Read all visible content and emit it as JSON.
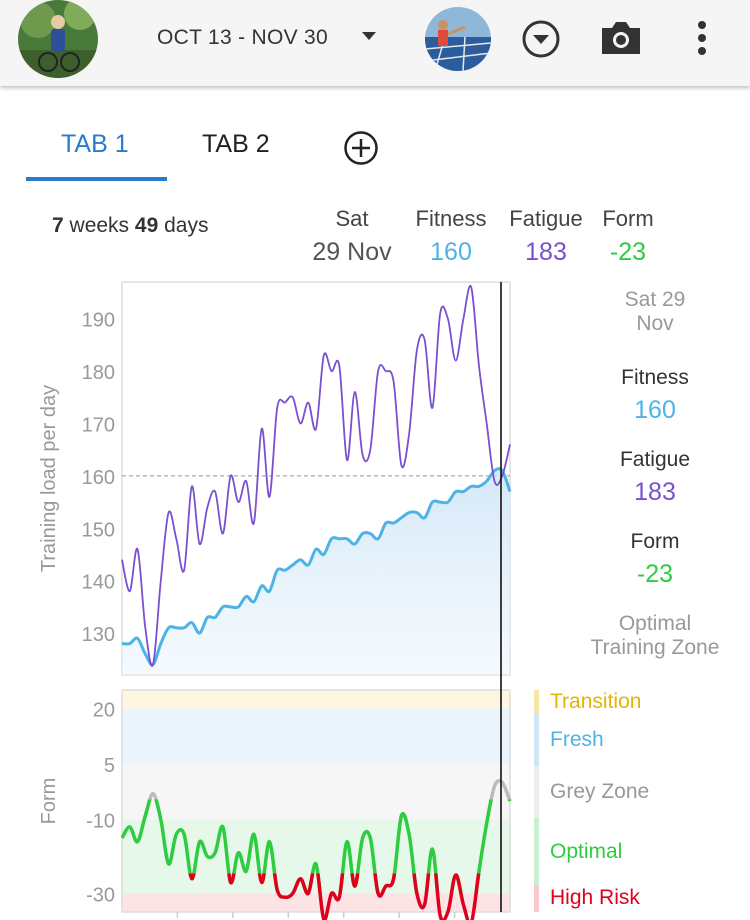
{
  "header": {
    "date_range": "OCT 13 - NOV 30",
    "icons": [
      "profile-avatar",
      "chevron-down-icon",
      "profile-photo",
      "circle-dropdown-icon",
      "camera-icon",
      "more-vert-icon"
    ]
  },
  "tabs": [
    {
      "label": "TAB 1",
      "active": true
    },
    {
      "label": "TAB 2",
      "active": false
    }
  ],
  "summary": {
    "weeks_num": "7",
    "weeks_label": "weeks",
    "days_num": "49",
    "days_label": "days",
    "day_name": "Sat",
    "day_date": "29 Nov",
    "fitness_label": "Fitness",
    "fitness_value": "160",
    "fatigue_label": "Fatigue",
    "fatigue_value": "183",
    "form_label": "Form",
    "form_value": "-23"
  },
  "side_panel": {
    "date_line1": "Sat 29",
    "date_line2": "Nov",
    "fitness_label": "Fitness",
    "fitness_value": "160",
    "fatigue_label": "Fatigue",
    "fatigue_value": "183",
    "form_label": "Form",
    "form_value": "-23",
    "zone_line1": "Optimal",
    "zone_line2": "Training Zone"
  },
  "colors": {
    "fitness": "#4db3e6",
    "fatigue": "#7a4fd0",
    "form_green": "#2ecc40",
    "form_red": "#e0001b",
    "tab_active": "#2a7ccb",
    "transition": "#e6b400",
    "fresh": "#4db3e6",
    "grey": "#999999",
    "high_risk": "#e0001b"
  },
  "form_zones": [
    {
      "name": "Transition",
      "color": "#e6b400"
    },
    {
      "name": "Fresh",
      "color": "#4db3e6"
    },
    {
      "name": "Grey Zone",
      "color": "#999999"
    },
    {
      "name": "Optimal",
      "color": "#2ecc40"
    },
    {
      "name": "High Risk",
      "color": "#e0001b"
    }
  ],
  "chart_data": [
    {
      "type": "line",
      "ylabel": "Training load per day",
      "ylim": [
        122,
        197
      ],
      "yticks": [
        "130",
        "140",
        "150",
        "160",
        "170",
        "180",
        "190"
      ],
      "reference_line": 160,
      "series": [
        {
          "name": "Fitness",
          "values": [
            128,
            128,
            129,
            126,
            124,
            128,
            131,
            131,
            131,
            132,
            130,
            133,
            133,
            135,
            135,
            135,
            137,
            136,
            139,
            138,
            142,
            142,
            143,
            144,
            143,
            146,
            145,
            148,
            148,
            148,
            147,
            149,
            149,
            148,
            151,
            151,
            152,
            153,
            153,
            152,
            155,
            155,
            155,
            157,
            157,
            158,
            158,
            159,
            161,
            161,
            157
          ]
        },
        {
          "name": "Fatigue",
          "values": [
            144,
            138,
            146,
            131,
            124,
            140,
            153,
            148,
            142,
            158,
            147,
            154,
            157,
            149,
            160,
            155,
            159,
            151,
            169,
            156,
            173,
            174,
            175,
            170,
            174,
            169,
            183,
            180,
            181,
            163,
            176,
            164,
            165,
            180,
            180,
            178,
            162,
            168,
            184,
            186,
            173,
            191,
            190,
            182,
            190,
            196,
            181,
            170,
            159,
            160,
            166
          ]
        }
      ]
    },
    {
      "type": "line",
      "ylabel": "Form",
      "ylim": [
        -35,
        25
      ],
      "yticks": [
        "20",
        "5",
        "-10",
        "-30"
      ],
      "series": [
        {
          "name": "Form",
          "values": [
            -15,
            -12,
            -16,
            -9,
            -3,
            -10,
            -22,
            -14,
            -14,
            -26,
            -16,
            -20,
            -19,
            -12,
            -27,
            -19,
            -24,
            -14,
            -27,
            -16,
            -29,
            -31,
            -30,
            -26,
            -30,
            -22,
            -37,
            -30,
            -31,
            -16,
            -28,
            -15,
            -15,
            -30,
            -28,
            -26,
            -9,
            -14,
            -30,
            -33,
            -18,
            -36,
            -35,
            -25,
            -33,
            -38,
            -24,
            -11,
            -1,
            0,
            -5
          ]
        }
      ]
    }
  ]
}
